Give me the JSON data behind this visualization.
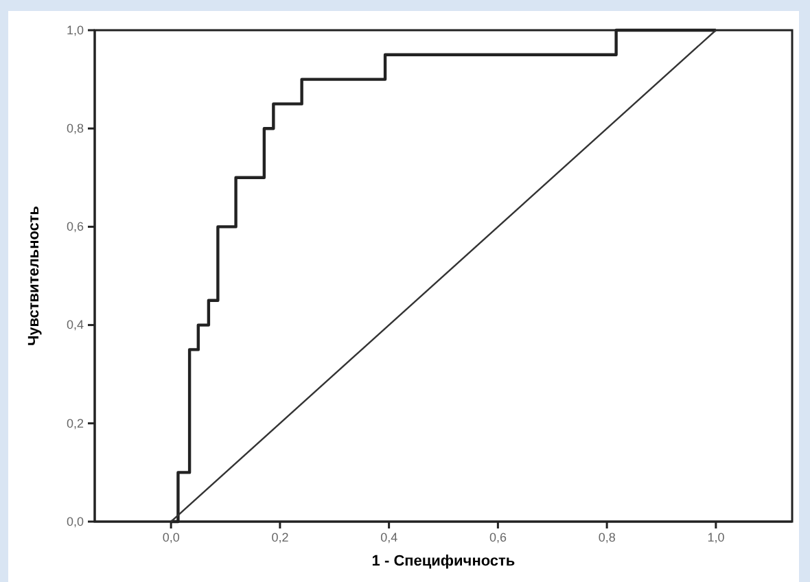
{
  "chart_data": {
    "type": "line",
    "xlabel": "1 - Специфичность",
    "ylabel": "Чувствительность",
    "xlim": [
      -0.14,
      1.14
    ],
    "ylim": [
      0,
      1
    ],
    "xticks": [
      {
        "value": 0,
        "label": "0,0"
      },
      {
        "value": 0.2,
        "label": "0,2"
      },
      {
        "value": 0.4,
        "label": "0,4"
      },
      {
        "value": 0.6,
        "label": "0,6"
      },
      {
        "value": 0.8,
        "label": "0,8"
      },
      {
        "value": 1,
        "label": "1,0"
      }
    ],
    "yticks": [
      {
        "value": 0,
        "label": "0,0"
      },
      {
        "value": 0.2,
        "label": "0,2"
      },
      {
        "value": 0.4,
        "label": "0,4"
      },
      {
        "value": 0.6,
        "label": "0,6"
      },
      {
        "value": 0.8,
        "label": "0,8"
      },
      {
        "value": 1,
        "label": "1,0"
      }
    ],
    "grid": false,
    "marker": "none",
    "line_style": "solid",
    "series": [
      {
        "type": "step",
        "color": "#222222",
        "x": [
          0,
          0.013,
          0.034,
          0.05,
          0.069,
          0.086,
          0.119,
          0.171,
          0.188,
          0.24,
          0.393,
          0.817,
          1
        ],
        "values": [
          0,
          0.1,
          0.35,
          0.4,
          0.45,
          0.6,
          0.7,
          0.8,
          0.85,
          0.9,
          0.95,
          1,
          1
        ]
      },
      {
        "color": "#333333",
        "x": [
          0,
          1
        ],
        "values": [
          0,
          1
        ]
      }
    ]
  }
}
